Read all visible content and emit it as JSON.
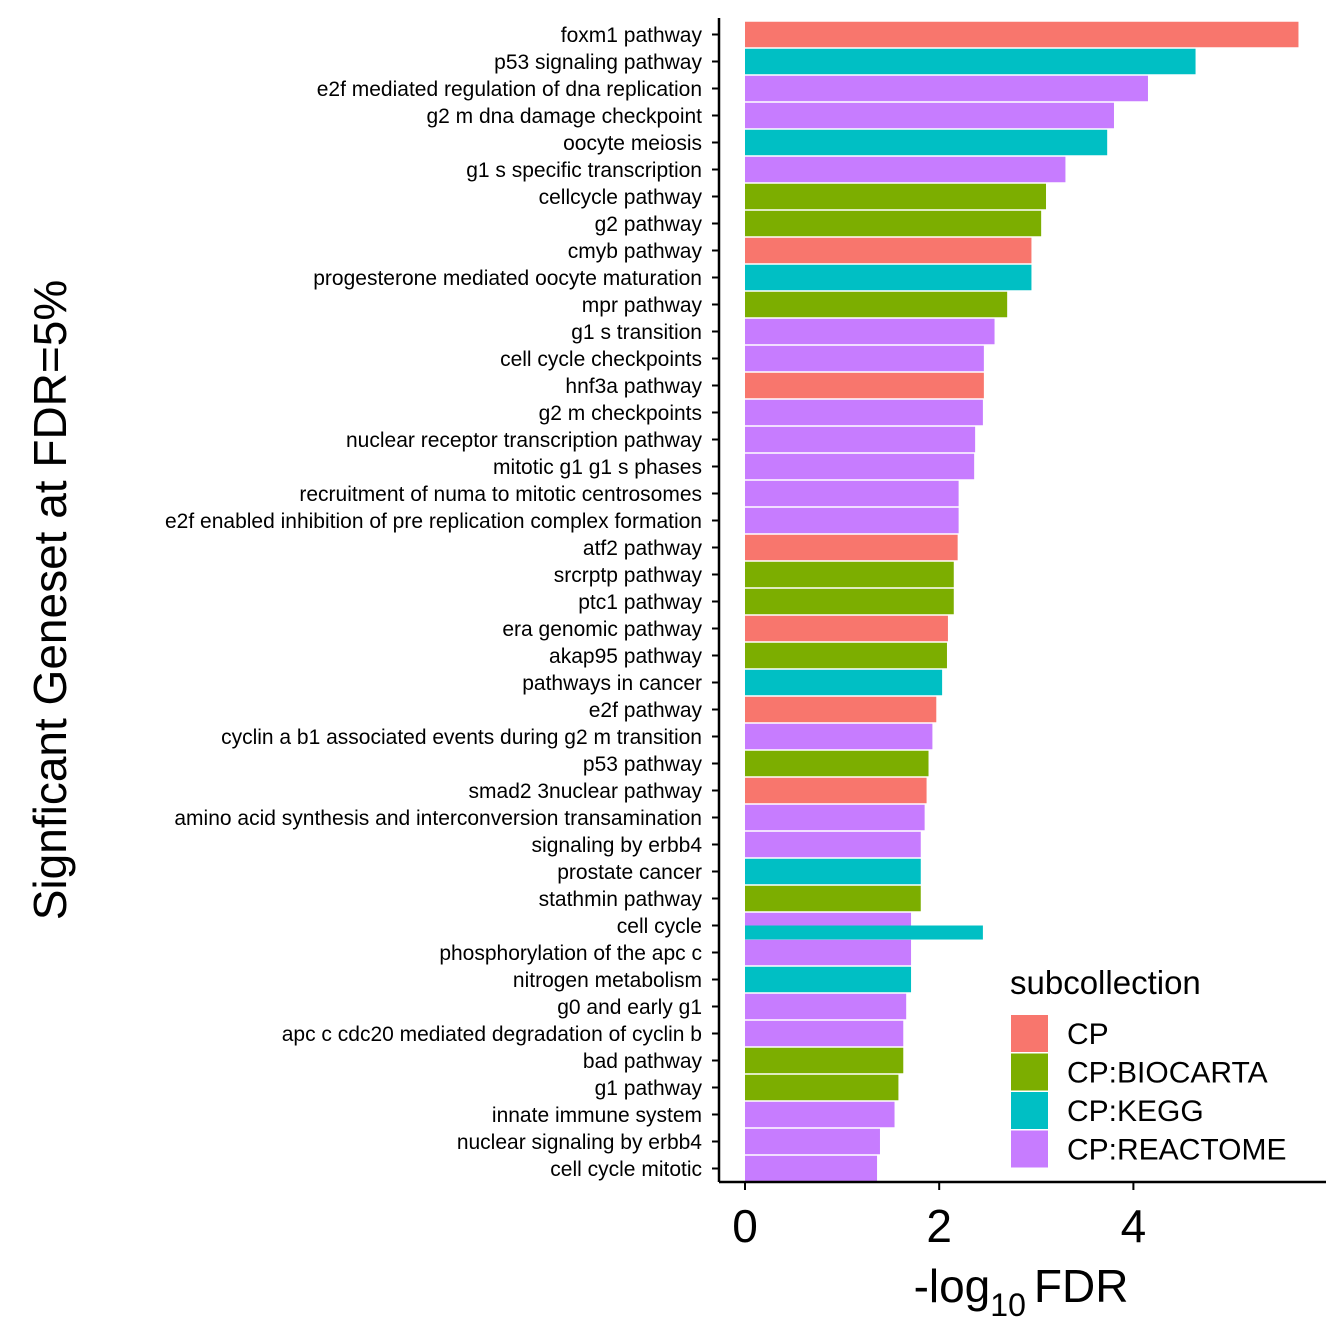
{
  "chart_data": {
    "type": "bar",
    "orientation": "horizontal",
    "xlabel_main": "-log",
    "xlabel_sub": "10",
    "xlabel_tail": "FDR",
    "ylabel": "Signficant Geneset at FDR=5%",
    "xlim": [
      -0.3,
      5.8
    ],
    "xticks": [
      "0",
      "2",
      "4"
    ],
    "xtick_values": [
      0,
      2,
      4
    ],
    "grid": false,
    "legend": {
      "title": "subcollection",
      "position": "bottom-right",
      "entries": [
        {
          "name": "CP",
          "color": "#F8766D"
        },
        {
          "name": "CP:BIOCARTA",
          "color": "#7CAE00"
        },
        {
          "name": "CP:KEGG",
          "color": "#00BFC4"
        },
        {
          "name": "CP:REACTOME",
          "color": "#C77CFF"
        }
      ]
    },
    "bars": [
      {
        "category": "foxm1 pathway",
        "value": 5.7,
        "group": "CP"
      },
      {
        "category": "p53 signaling pathway",
        "value": 4.64,
        "group": "CP:KEGG"
      },
      {
        "category": "e2f mediated regulation of dna replication",
        "value": 4.15,
        "group": "CP:REACTOME"
      },
      {
        "category": "g2 m dna damage checkpoint",
        "value": 3.8,
        "group": "CP:REACTOME"
      },
      {
        "category": "oocyte meiosis",
        "value": 3.73,
        "group": "CP:KEGG"
      },
      {
        "category": "g1 s specific transcription",
        "value": 3.3,
        "group": "CP:REACTOME"
      },
      {
        "category": "cellcycle pathway",
        "value": 3.1,
        "group": "CP:BIOCARTA"
      },
      {
        "category": "g2 pathway",
        "value": 3.05,
        "group": "CP:BIOCARTA"
      },
      {
        "category": "cmyb pathway",
        "value": 2.95,
        "group": "CP"
      },
      {
        "category": "progesterone mediated oocyte maturation",
        "value": 2.95,
        "group": "CP:KEGG"
      },
      {
        "category": "mpr pathway",
        "value": 2.7,
        "group": "CP:BIOCARTA"
      },
      {
        "category": "g1 s transition",
        "value": 2.57,
        "group": "CP:REACTOME"
      },
      {
        "category": "cell cycle checkpoints",
        "value": 2.46,
        "group": "CP:REACTOME"
      },
      {
        "category": "hnf3a pathway",
        "value": 2.46,
        "group": "CP"
      },
      {
        "category": "g2 m checkpoints",
        "value": 2.45,
        "group": "CP:REACTOME"
      },
      {
        "category": "nuclear receptor transcription pathway",
        "value": 2.37,
        "group": "CP:REACTOME"
      },
      {
        "category": "mitotic g1 g1 s phases",
        "value": 2.36,
        "group": "CP:REACTOME"
      },
      {
        "category": "recruitment of numa to mitotic centrosomes",
        "value": 2.2,
        "group": "CP:REACTOME"
      },
      {
        "category": "e2f enabled inhibition of pre replication complex formation",
        "value": 2.2,
        "group": "CP:REACTOME"
      },
      {
        "category": "atf2 pathway",
        "value": 2.19,
        "group": "CP"
      },
      {
        "category": "srcrptp pathway",
        "value": 2.15,
        "group": "CP:BIOCARTA"
      },
      {
        "category": "ptc1 pathway",
        "value": 2.15,
        "group": "CP:BIOCARTA"
      },
      {
        "category": "era genomic pathway",
        "value": 2.09,
        "group": "CP"
      },
      {
        "category": "akap95 pathway",
        "value": 2.08,
        "group": "CP:BIOCARTA"
      },
      {
        "category": "pathways in cancer",
        "value": 2.03,
        "group": "CP:KEGG"
      },
      {
        "category": "e2f pathway",
        "value": 1.97,
        "group": "CP"
      },
      {
        "category": "cyclin a b1 associated events during g2 m transition",
        "value": 1.93,
        "group": "CP:REACTOME"
      },
      {
        "category": "p53 pathway",
        "value": 1.89,
        "group": "CP:BIOCARTA"
      },
      {
        "category": "smad2 3nuclear pathway",
        "value": 1.87,
        "group": "CP"
      },
      {
        "category": "amino acid synthesis and interconversion transamination",
        "value": 1.85,
        "group": "CP:REACTOME"
      },
      {
        "category": "signaling by erbb4",
        "value": 1.81,
        "group": "CP:REACTOME"
      },
      {
        "category": "prostate cancer",
        "value": 1.81,
        "group": "CP:KEGG"
      },
      {
        "category": "stathmin pathway",
        "value": 1.81,
        "group": "CP:BIOCARTA"
      },
      {
        "category": "cell cycle",
        "value": 1.71,
        "group": "CP:REACTOME",
        "overlay": {
          "value": 2.45,
          "group": "CP:KEGG"
        }
      },
      {
        "category": "phosphorylation of the apc c",
        "value": 1.71,
        "group": "CP:REACTOME"
      },
      {
        "category": "nitrogen metabolism",
        "value": 1.71,
        "group": "CP:KEGG"
      },
      {
        "category": "g0 and early g1",
        "value": 1.66,
        "group": "CP:REACTOME"
      },
      {
        "category": "apc c cdc20 mediated degradation of cyclin b",
        "value": 1.63,
        "group": "CP:REACTOME"
      },
      {
        "category": "bad pathway",
        "value": 1.63,
        "group": "CP:BIOCARTA"
      },
      {
        "category": "g1 pathway",
        "value": 1.58,
        "group": "CP:BIOCARTA"
      },
      {
        "category": "innate immune system",
        "value": 1.54,
        "group": "CP:REACTOME"
      },
      {
        "category": "nuclear signaling by erbb4",
        "value": 1.39,
        "group": "CP:REACTOME"
      },
      {
        "category": "cell cycle mitotic",
        "value": 1.36,
        "group": "CP:REACTOME"
      }
    ]
  }
}
